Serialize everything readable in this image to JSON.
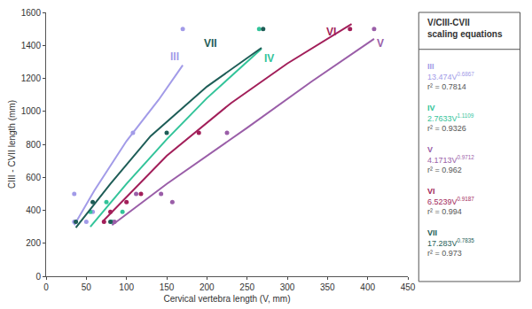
{
  "chart_data": {
    "type": "scatter",
    "xlabel": "Cervical vertebra length (V, mm)",
    "ylabel": "CIII - CVII length (mm)",
    "xlim": [
      0,
      450
    ],
    "xticks": [
      0,
      50,
      100,
      150,
      200,
      250,
      300,
      350,
      400,
      450
    ],
    "ylim": [
      0,
      1600
    ],
    "yticks": [
      0,
      200,
      400,
      600,
      800,
      1000,
      1200,
      1400,
      1600
    ],
    "grid": false,
    "legend_title": [
      "V/CIII-CVII",
      "scaling equations"
    ],
    "series": [
      {
        "name": "III",
        "color": "#a29be8",
        "x": [
          35,
          35,
          50,
          58,
          108,
          170
        ],
        "values": [
          500,
          330,
          330,
          390,
          870,
          1500
        ],
        "curve_x": [
          35,
          60,
          100,
          140,
          170
        ],
        "curve_values": [
          310,
          520,
          820,
          1070,
          1280
        ],
        "label_x": 160,
        "label_y": 1330,
        "equation_base": "13.474V",
        "equation_exponent": "0.6867",
        "r2_label": "r² = 0.7814"
      },
      {
        "name": "IV",
        "color": "#33c49a",
        "x": [
          55,
          75,
          82,
          95,
          265
        ],
        "values": [
          390,
          450,
          330,
          390,
          1500
        ],
        "curve_x": [
          55,
          100,
          150,
          200,
          268
        ],
        "curve_values": [
          300,
          560,
          830,
          1080,
          1380
        ],
        "label_x": 277,
        "label_y": 1320,
        "equation_base": "2.7633V",
        "equation_exponent": "1.1109",
        "r2_label": "r² = 0.9326"
      },
      {
        "name": "V",
        "color": "#9a5ea8",
        "x": [
          85,
          112,
          143,
          157,
          225,
          408
        ],
        "values": [
          330,
          500,
          500,
          450,
          870,
          1500
        ],
        "curve_x": [
          82,
          150,
          250,
          330,
          408
        ],
        "curve_values": [
          310,
          560,
          900,
          1180,
          1440
        ],
        "label_x": 416,
        "label_y": 1410,
        "equation_base": "4.1713V",
        "equation_exponent": "0.9712",
        "r2_label": "r² = 0.962"
      },
      {
        "name": "VI",
        "color": "#a21f5a",
        "x": [
          72,
          80,
          100,
          118,
          190,
          378
        ],
        "values": [
          330,
          390,
          450,
          500,
          870,
          1500
        ],
        "curve_x": [
          70,
          150,
          230,
          300,
          380
        ],
        "curve_values": [
          330,
          730,
          1050,
          1290,
          1530
        ],
        "label_x": 355,
        "label_y": 1480,
        "equation_base": "6.5239V",
        "equation_exponent": "0.9187",
        "r2_label": "r² = 0.994"
      },
      {
        "name": "VII",
        "color": "#1e5d57",
        "x": [
          37,
          58,
          80,
          150,
          270
        ],
        "values": [
          330,
          450,
          330,
          870,
          1500
        ],
        "curve_x": [
          37,
          80,
          130,
          200,
          268
        ],
        "curve_values": [
          295,
          560,
          850,
          1150,
          1385
        ],
        "label_x": 205,
        "label_y": 1410,
        "equation_base": "17.283V",
        "equation_exponent": "0.7835",
        "r2_label": "r² = 0.973"
      }
    ]
  }
}
